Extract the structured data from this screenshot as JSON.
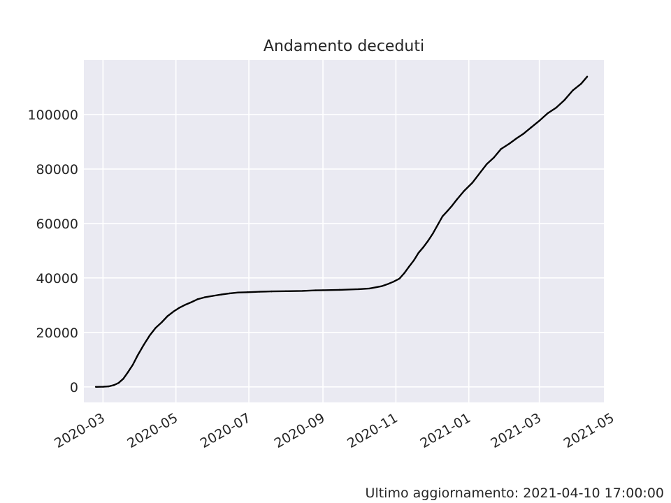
{
  "chart_data": {
    "type": "line",
    "title": "Andamento deceduti",
    "xlabel": "",
    "ylabel": "",
    "x_axis": "date",
    "xlim": [
      "2020-02-14",
      "2021-04-24"
    ],
    "ylim": [
      -5700,
      120000
    ],
    "x_ticks": [
      "2020-03",
      "2020-05",
      "2020-07",
      "2020-09",
      "2020-11",
      "2021-01",
      "2021-03",
      "2021-05"
    ],
    "y_ticks": [
      0,
      20000,
      40000,
      60000,
      80000,
      100000
    ],
    "grid": true,
    "background": "#eaeaf2",
    "line_color": "#000000",
    "series": [
      {
        "x": [
          "2020-02-24",
          "2020-03-01",
          "2020-03-06",
          "2020-03-10",
          "2020-03-14",
          "2020-03-18",
          "2020-03-22",
          "2020-03-26",
          "2020-03-30",
          "2020-04-04",
          "2020-04-09",
          "2020-04-14",
          "2020-04-19",
          "2020-04-24",
          "2020-04-29",
          "2020-05-04",
          "2020-05-09",
          "2020-05-14",
          "2020-05-19",
          "2020-05-25",
          "2020-06-01",
          "2020-06-08",
          "2020-06-15",
          "2020-06-22",
          "2020-06-30",
          "2020-07-10",
          "2020-07-20",
          "2020-08-01",
          "2020-08-15",
          "2020-08-26",
          "2020-09-01",
          "2020-09-15",
          "2020-10-01",
          "2020-10-10",
          "2020-10-20",
          "2020-10-25",
          "2020-10-30",
          "2020-11-04",
          "2020-11-08",
          "2020-11-12",
          "2020-11-16",
          "2020-11-20",
          "2020-11-24",
          "2020-11-28",
          "2020-12-02",
          "2020-12-06",
          "2020-12-10",
          "2020-12-14",
          "2020-12-18",
          "2020-12-22",
          "2020-12-28",
          "2021-01-04",
          "2021-01-10",
          "2021-01-16",
          "2021-01-22",
          "2021-01-28",
          "2021-02-04",
          "2021-02-10",
          "2021-02-16",
          "2021-02-22",
          "2021-03-01",
          "2021-03-08",
          "2021-03-15",
          "2021-03-22",
          "2021-03-29",
          "2021-04-05",
          "2021-04-10"
        ],
        "y": [
          7,
          34,
          197,
          631,
          1441,
          2978,
          5476,
          8165,
          11591,
          15362,
          18849,
          21645,
          23660,
          25969,
          27682,
          29079,
          30201,
          31106,
          32169,
          32877,
          33415,
          33899,
          34345,
          34644,
          34767,
          34945,
          35058,
          35141,
          35234,
          35445,
          35491,
          35633,
          35894,
          36140,
          36968,
          37700,
          38618,
          39764,
          41750,
          44139,
          46464,
          49261,
          51306,
          53677,
          56361,
          59514,
          62626,
          64520,
          66537,
          68799,
          71925,
          74985,
          78394,
          81800,
          84202,
          87381,
          89344,
          91273,
          93045,
          95228,
          97699,
          100479,
          102499,
          105328,
          108879,
          111326,
          113923
        ]
      }
    ]
  },
  "footer": {
    "last_update": "Ultimo aggiornamento: 2021-04-10 17:00:00"
  }
}
